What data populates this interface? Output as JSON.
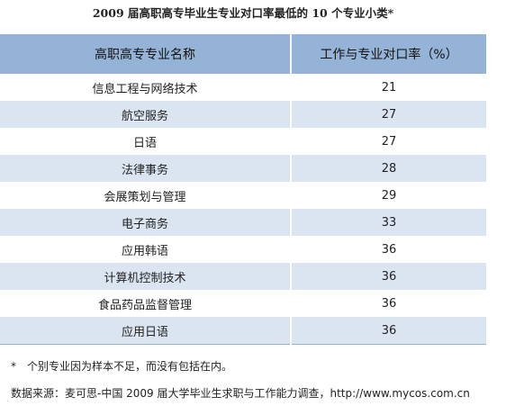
{
  "title": "2009 届高职高专毕业生专业对口率最低的 10 个专业小类*",
  "table": {
    "header": [
      "高职高专专业名称",
      "工作与专业对口率（%）"
    ],
    "rows": [
      [
        "信息工程与网络技术",
        21
      ],
      [
        "航空服务",
        27
      ],
      [
        "日语",
        27
      ],
      [
        "法律事务",
        28
      ],
      [
        "会展策划与管理",
        29
      ],
      [
        "电子商务",
        33
      ],
      [
        "应用韩语",
        36
      ],
      [
        "计算机控制技术",
        36
      ],
      [
        "食品药品监督管理",
        36
      ],
      [
        "应用日语",
        36
      ]
    ]
  },
  "footnote": "*　个别专业因为样本不足，而没有包括在内。",
  "source": "数据来源：麦可思-中国 2009 届大学毕业生求职与工作能力调查，http://www.mycos.com.cn"
}
